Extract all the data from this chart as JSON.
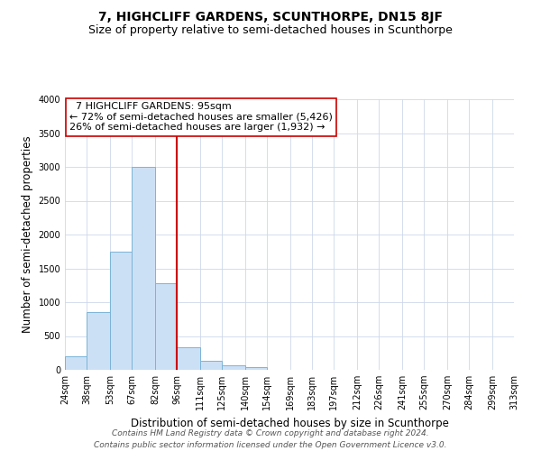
{
  "title": "7, HIGHCLIFF GARDENS, SCUNTHORPE, DN15 8JF",
  "subtitle": "Size of property relative to semi-detached houses in Scunthorpe",
  "xlabel": "Distribution of semi-detached houses by size in Scunthorpe",
  "ylabel": "Number of semi-detached properties",
  "bin_edges": [
    24,
    38,
    53,
    67,
    82,
    96,
    111,
    125,
    140,
    154,
    169,
    183,
    197,
    212,
    226,
    241,
    255,
    270,
    284,
    299,
    313
  ],
  "bin_heights": [
    200,
    850,
    1750,
    3000,
    1280,
    330,
    140,
    70,
    40,
    0,
    0,
    0,
    0,
    0,
    0,
    0,
    0,
    0,
    0,
    0
  ],
  "bar_color": "#cce0f5",
  "bar_edge_color": "#7ab4d8",
  "vline_x": 96,
  "vline_color": "#cc0000",
  "annotation_title": "7 HIGHCLIFF GARDENS: 95sqm",
  "annotation_line1": "← 72% of semi-detached houses are smaller (5,426)",
  "annotation_line2": "26% of semi-detached houses are larger (1,932) →",
  "annotation_box_color": "#ffffff",
  "annotation_box_edge": "#cc0000",
  "ylim": [
    0,
    4000
  ],
  "xlim": [
    24,
    313
  ],
  "tick_labels": [
    "24sqm",
    "38sqm",
    "53sqm",
    "67sqm",
    "82sqm",
    "96sqm",
    "111sqm",
    "125sqm",
    "140sqm",
    "154sqm",
    "169sqm",
    "183sqm",
    "197sqm",
    "212sqm",
    "226sqm",
    "241sqm",
    "255sqm",
    "270sqm",
    "284sqm",
    "299sqm",
    "313sqm"
  ],
  "footer_line1": "Contains HM Land Registry data © Crown copyright and database right 2024.",
  "footer_line2": "Contains public sector information licensed under the Open Government Licence v3.0.",
  "bg_color": "#ffffff",
  "grid_color": "#cdd8ea",
  "title_fontsize": 10,
  "subtitle_fontsize": 9,
  "axis_label_fontsize": 8.5,
  "tick_fontsize": 7,
  "footer_fontsize": 6.5,
  "annotation_fontsize": 8
}
